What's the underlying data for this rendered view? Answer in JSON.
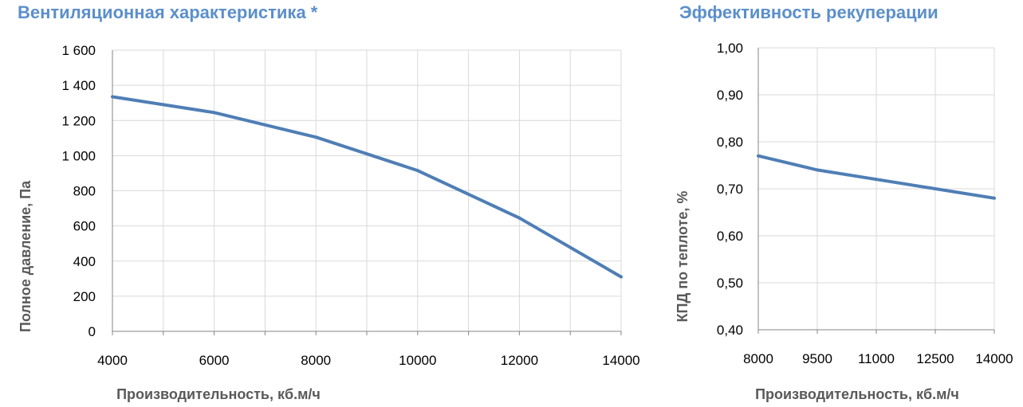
{
  "chart_data": [
    {
      "type": "line",
      "title": "Вентиляционная характеристика *",
      "xlabel": "Производительность, кб.м/ч",
      "ylabel": "Полное давление, Па",
      "x_ticks": [
        "4000",
        "6000",
        "8000",
        "10000",
        "12000",
        "14000"
      ],
      "y_ticks": [
        "0",
        "200",
        "400",
        "600",
        "800",
        "1 000",
        "1 200",
        "1 400",
        "1 600"
      ],
      "xlim": [
        4000,
        14000
      ],
      "ylim": [
        0,
        1600
      ],
      "grid": true,
      "color": "#4f7eb5",
      "series": [
        {
          "x": [
            4000,
            6000,
            8000,
            10000,
            12000,
            14000
          ],
          "y": [
            1335,
            1245,
            1105,
            915,
            645,
            310
          ]
        }
      ]
    },
    {
      "type": "line",
      "title": "Эффективность рекуперации",
      "xlabel": "Производительность, кб.м/ч",
      "ylabel": "КПД по теплоте, %",
      "x_ticks": [
        "8000",
        "9500",
        "11000",
        "12500",
        "14000"
      ],
      "y_ticks": [
        "0,40",
        "0,50",
        "0,60",
        "0,70",
        "0,80",
        "0,90",
        "1,00"
      ],
      "xlim": [
        8000,
        14000
      ],
      "ylim": [
        0.4,
        1.0
      ],
      "grid": true,
      "color": "#4f7eb5",
      "series": [
        {
          "x": [
            8000,
            9500,
            11000,
            12500,
            14000
          ],
          "y": [
            0.77,
            0.74,
            0.72,
            0.7,
            0.68
          ]
        }
      ]
    }
  ]
}
